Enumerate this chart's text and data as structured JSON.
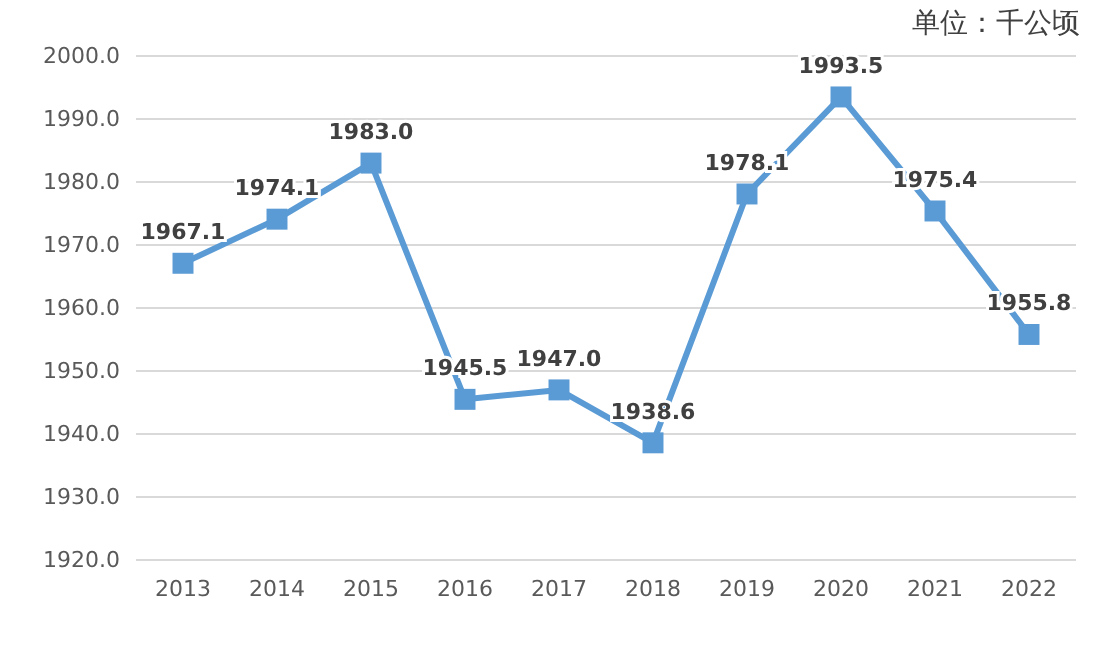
{
  "chart_data": {
    "type": "line",
    "categories": [
      "2013",
      "2014",
      "2015",
      "2016",
      "2017",
      "2018",
      "2019",
      "2020",
      "2021",
      "2022"
    ],
    "series": [
      {
        "color": "#5b9bd5",
        "values": [
          1967.1,
          1974.1,
          1983.0,
          1945.5,
          1947.0,
          1938.6,
          1978.1,
          1993.5,
          1975.4,
          1955.8
        ],
        "value_labels": [
          "1967.1",
          "1974.1",
          "1983.0",
          "1945.5",
          "1947.0",
          "1938.6",
          "1978.1",
          "1993.5",
          "1975.4",
          "1955.8"
        ]
      }
    ],
    "ylim": [
      1920,
      2000
    ],
    "yticks": [
      {
        "value": 1920,
        "label": "1920.0"
      },
      {
        "value": 1930,
        "label": "1930.0"
      },
      {
        "value": 1940,
        "label": "1940.0"
      },
      {
        "value": 1950,
        "label": "1950.0"
      },
      {
        "value": 1960,
        "label": "1960.0"
      },
      {
        "value": 1970,
        "label": "1970.0"
      },
      {
        "value": 1980,
        "label": "1980.0"
      },
      {
        "value": 1990,
        "label": "1990.0"
      },
      {
        "value": 2000,
        "label": "2000.0"
      }
    ],
    "grid": "y",
    "marker": "square",
    "line_style": "solid",
    "annotations": [
      "单位：千公顷"
    ]
  }
}
